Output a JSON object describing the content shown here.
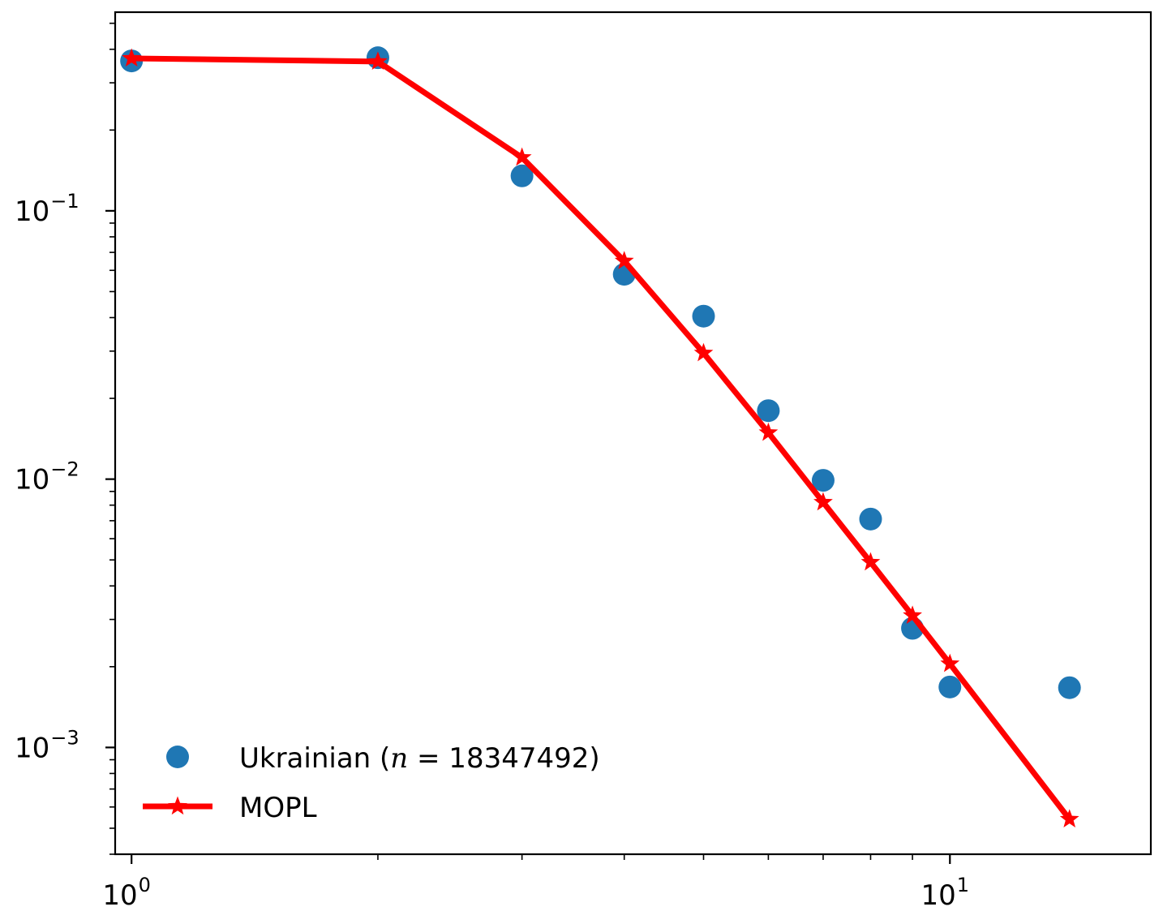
{
  "chart_data": {
    "type": "scatter",
    "xscale": "log",
    "yscale": "log",
    "xlim": [
      0.955,
      17.6
    ],
    "ylim": [
      0.0004,
      0.55
    ],
    "x_ticks": [
      {
        "value": 1,
        "base": "10",
        "exp": "0"
      },
      {
        "value": 10,
        "base": "10",
        "exp": "1"
      }
    ],
    "y_ticks": [
      {
        "value": 0.1,
        "base": "10",
        "exp": "−1"
      },
      {
        "value": 0.01,
        "base": "10",
        "exp": "−2"
      },
      {
        "value": 0.001,
        "base": "10",
        "exp": "−3"
      }
    ],
    "legend": {
      "position": "lower-left",
      "entries": [
        {
          "series": 0,
          "label": "Ukrainian (",
          "math_var": "n",
          "math_rest": " = 18347492)"
        },
        {
          "series": 1,
          "label": "MOPL"
        }
      ]
    },
    "series": [
      {
        "name": "Ukrainian (n = 18347492)",
        "style": "markers",
        "marker": "circle",
        "color": "#1f77b4",
        "x": [
          1,
          2,
          3,
          4,
          5,
          6,
          7,
          8,
          9,
          10,
          14
        ],
        "y": [
          0.362,
          0.372,
          0.135,
          0.058,
          0.0405,
          0.018,
          0.0099,
          0.0071,
          0.00278,
          0.00168,
          0.00167
        ]
      },
      {
        "name": "MOPL",
        "style": "line-markers",
        "marker": "star",
        "color": "#ff0000",
        "x": [
          1,
          2,
          3,
          4,
          5,
          6,
          7,
          8,
          9,
          10,
          14
        ],
        "y": [
          0.37,
          0.36,
          0.158,
          0.065,
          0.0295,
          0.0149,
          0.0082,
          0.0049,
          0.0031,
          0.00205,
          0.00054
        ]
      }
    ]
  }
}
